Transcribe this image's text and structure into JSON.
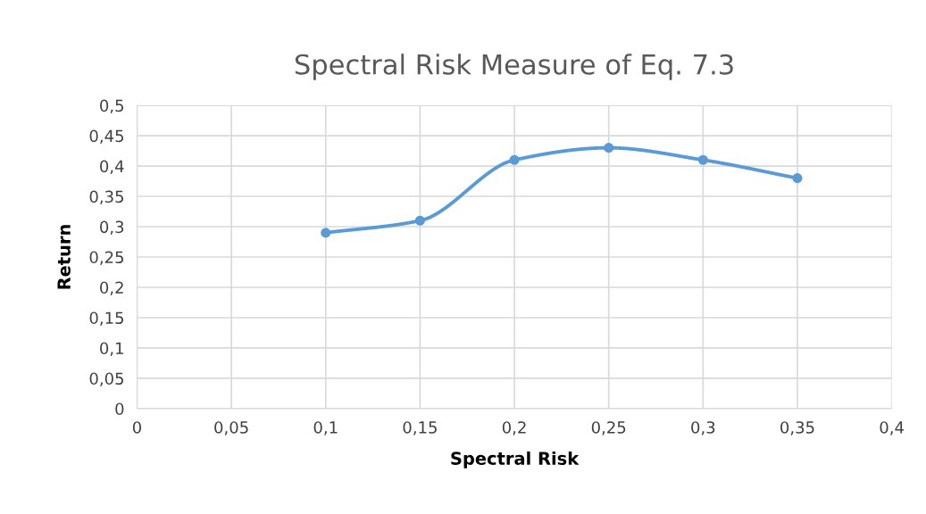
{
  "chart_data": {
    "type": "line",
    "title": "Spectral Risk Measure of Eq. 7.3",
    "xlabel": "Spectral Risk",
    "ylabel": "Return",
    "x": [
      0.1,
      0.15,
      0.2,
      0.25,
      0.3,
      0.35
    ],
    "series": [
      {
        "color": "#5b9bd5",
        "values": [
          0.29,
          0.31,
          0.41,
          0.43,
          0.41,
          0.38
        ]
      }
    ],
    "xlim": [
      0,
      0.4
    ],
    "ylim": [
      0,
      0.5
    ],
    "xticks": [
      0,
      {
        "value": 0.05,
        "label": "0,05"
      },
      {
        "value": 0.1,
        "label": "0,1"
      },
      {
        "value": 0.15,
        "label": "0,15"
      },
      {
        "value": 0.2,
        "label": "0,2"
      },
      {
        "value": 0.25,
        "label": "0,25"
      },
      {
        "value": 0.3,
        "label": "0,3"
      },
      {
        "value": 0.35,
        "label": "0,35"
      },
      {
        "value": 0.4,
        "label": "0,4"
      }
    ],
    "yticks": [
      0,
      {
        "value": 0.05,
        "label": "0,05"
      },
      {
        "value": 0.1,
        "label": "0,1"
      },
      {
        "value": 0.15,
        "label": "0,15"
      },
      {
        "value": 0.2,
        "label": "0,2"
      },
      {
        "value": 0.25,
        "label": "0,25"
      },
      {
        "value": 0.3,
        "label": "0,3"
      },
      {
        "value": 0.35,
        "label": "0,35"
      },
      {
        "value": 0.4,
        "label": "0,4"
      },
      {
        "value": 0.45,
        "label": "0,45"
      },
      {
        "value": 0.5,
        "label": "0,5"
      }
    ],
    "grid": true,
    "marker": "circle",
    "line_style": "solid"
  }
}
